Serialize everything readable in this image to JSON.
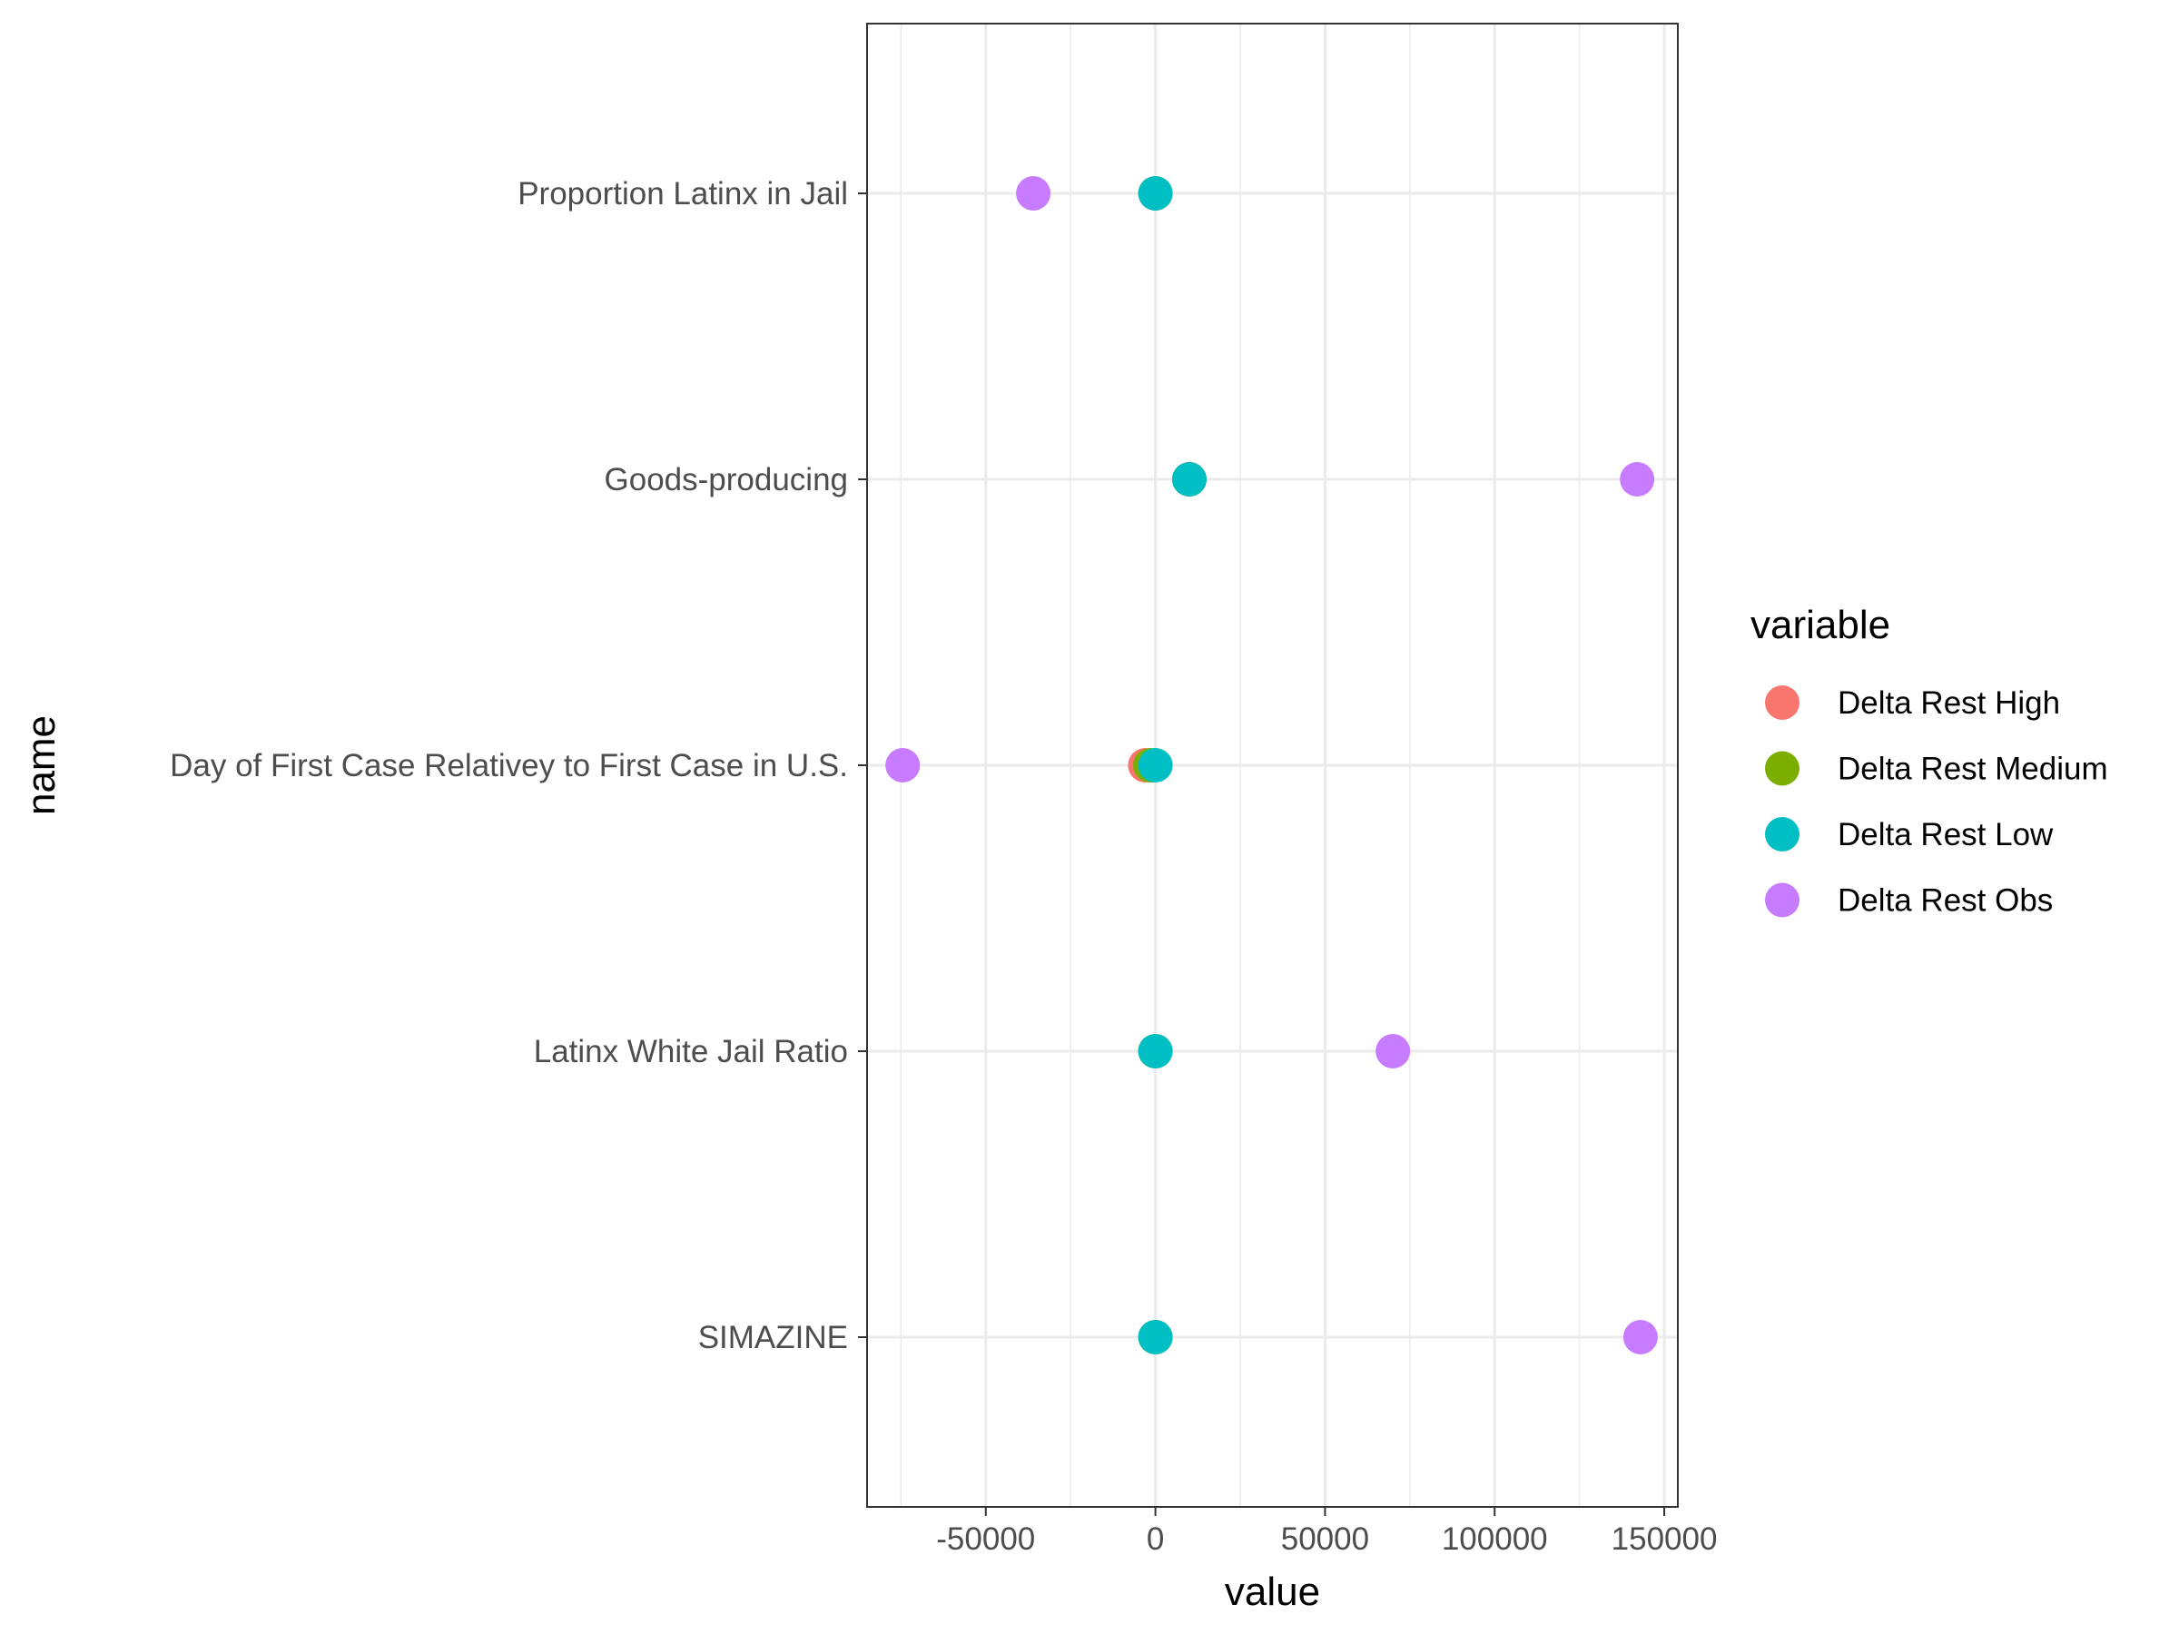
{
  "chart_data": {
    "type": "scatter",
    "xlabel": "value",
    "ylabel": "name",
    "xlim": [
      -85000,
      154000
    ],
    "x_ticks": [
      -50000,
      0,
      50000,
      100000,
      150000
    ],
    "x_tick_labels": [
      "-50000",
      "0",
      "50000",
      "100000",
      "150000"
    ],
    "categories": [
      "Proportion Latinx in Jail",
      "Goods-producing",
      "Day of First Case Relativey to First Case in U.S.",
      "Latinx White Jail Ratio",
      "SIMAZINE"
    ],
    "legend": {
      "title": "variable",
      "placement": "right"
    },
    "grid": true,
    "series": [
      {
        "name": "Delta Rest High",
        "color": "#F8766D",
        "values": [
          0,
          10000,
          -3000,
          0,
          0
        ]
      },
      {
        "name": "Delta Rest Medium",
        "color": "#7CAE00",
        "values": [
          0,
          10000,
          -1500,
          0,
          0
        ]
      },
      {
        "name": "Delta Rest Low",
        "color": "#00BFC4",
        "values": [
          0,
          10000,
          0,
          0,
          0
        ]
      },
      {
        "name": "Delta Rest Obs",
        "color": "#C77CFF",
        "values": [
          -36000,
          142000,
          -74500,
          70000,
          143000
        ]
      }
    ]
  }
}
